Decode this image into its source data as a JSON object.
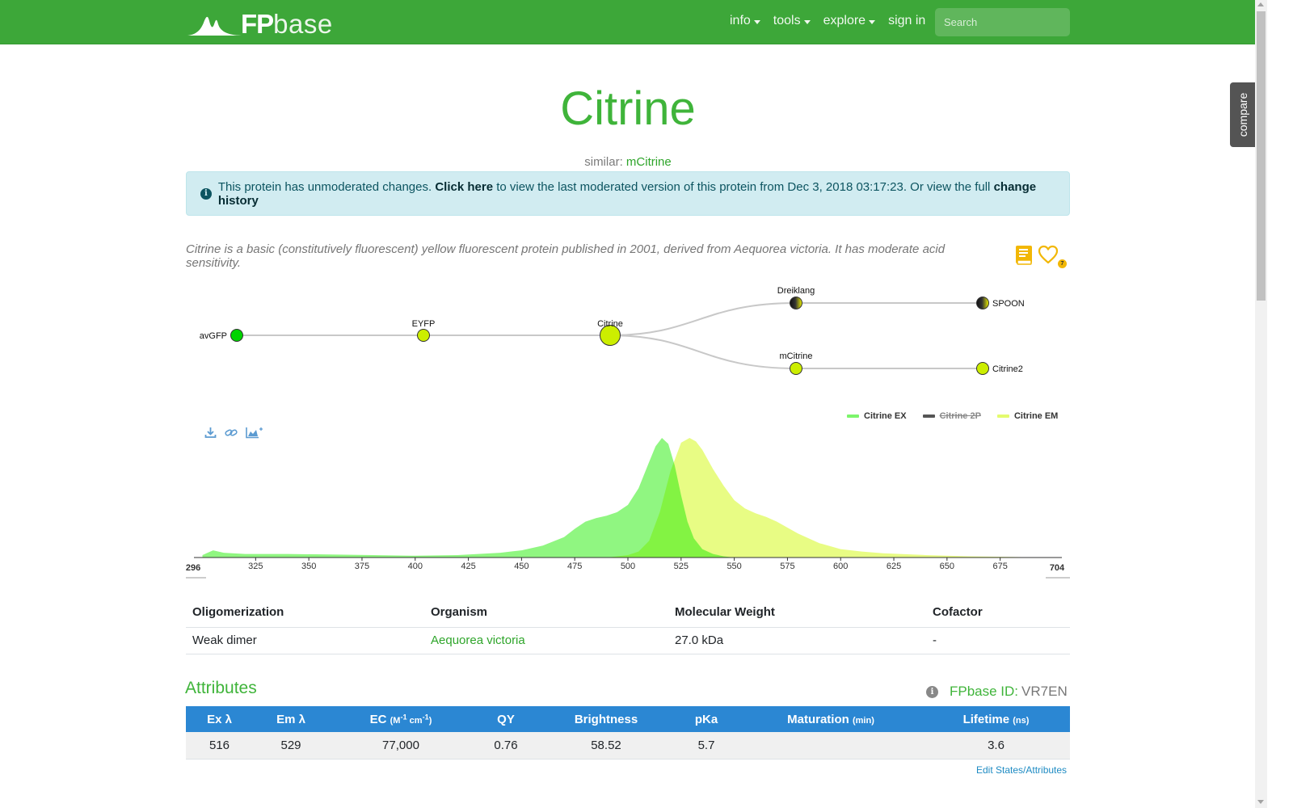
{
  "navbar": {
    "logo_fp": "FP",
    "logo_base": "base",
    "menu": [
      {
        "label": "info",
        "dropdown": true
      },
      {
        "label": "tools",
        "dropdown": true
      },
      {
        "label": "explore",
        "dropdown": true
      },
      {
        "label": "sign in",
        "dropdown": false
      }
    ],
    "search_placeholder": "Search",
    "color": "#3da739"
  },
  "compare_tab": "compare",
  "protein": {
    "name": "Citrine",
    "similar_label": "similar:",
    "similar_link": "mCitrine",
    "description": "Citrine is a basic (constitutively fluorescent) yellow fluorescent protein published in 2001, derived from Aequorea victoria. It has moderate acid sensitivity.",
    "favorite_count": "7"
  },
  "alert": {
    "text1": "This protein has unmoderated changes.",
    "link1": "Click here",
    "text2": "to view the last moderated version of this protein from Dec 3, 2018 03:17:23. Or view the full",
    "link2": "change history"
  },
  "lineage": {
    "nodes": [
      {
        "name": "avGFP",
        "color": "#00d400",
        "current": false
      },
      {
        "name": "EYFP",
        "color": "#ccee00",
        "current": false
      },
      {
        "name": "Citrine",
        "color": "#ccee00",
        "current": true
      },
      {
        "name": "Dreiklang",
        "color": "gradient-dark",
        "current": false
      },
      {
        "name": "SPOON",
        "color": "gradient-dark",
        "current": false
      },
      {
        "name": "mCitrine",
        "color": "#ccee00",
        "current": false
      },
      {
        "name": "Citrine2",
        "color": "#ccee00",
        "current": false
      }
    ]
  },
  "spectra": {
    "legend": [
      {
        "label": "Citrine EX",
        "color": "#7cf56b",
        "hidden": false
      },
      {
        "label": "Citrine 2P",
        "color": "#555555",
        "hidden": true
      },
      {
        "label": "Citrine EM",
        "color": "#e4fb6e",
        "hidden": false
      }
    ],
    "tools": [
      "download-icon",
      "link-icon",
      "add-chart-icon"
    ]
  },
  "chart_data": {
    "type": "area",
    "x_range": [
      296,
      704
    ],
    "x_ticks": [
      325,
      350,
      375,
      400,
      425,
      450,
      475,
      500,
      525,
      550,
      575,
      600,
      625,
      650,
      675
    ],
    "x_min_label": "296",
    "x_max_label": "704",
    "series": [
      {
        "name": "Citrine EX",
        "color": "#7cf56b",
        "x": [
          300,
          305,
          310,
          320,
          340,
          360,
          380,
          400,
          420,
          440,
          450,
          460,
          470,
          475,
          480,
          485,
          490,
          495,
          500,
          505,
          510,
          513,
          516,
          519,
          522,
          525,
          528,
          531,
          535,
          540,
          545,
          550
        ],
        "y": [
          0.02,
          0.06,
          0.04,
          0.03,
          0.03,
          0.025,
          0.02,
          0.015,
          0.02,
          0.04,
          0.06,
          0.1,
          0.17,
          0.24,
          0.3,
          0.33,
          0.35,
          0.38,
          0.44,
          0.58,
          0.8,
          0.93,
          1.0,
          0.95,
          0.77,
          0.52,
          0.3,
          0.16,
          0.07,
          0.03,
          0.01,
          0
        ]
      },
      {
        "name": "Citrine EM",
        "color": "#e4fb6e",
        "x": [
          490,
          500,
          505,
          510,
          515,
          520,
          525,
          529,
          532,
          535,
          540,
          545,
          550,
          555,
          560,
          565,
          570,
          575,
          580,
          590,
          600,
          610,
          620,
          640,
          660,
          680,
          700
        ],
        "y": [
          0,
          0.02,
          0.05,
          0.14,
          0.38,
          0.72,
          0.96,
          1.0,
          0.97,
          0.9,
          0.74,
          0.6,
          0.48,
          0.41,
          0.37,
          0.34,
          0.3,
          0.25,
          0.2,
          0.12,
          0.07,
          0.05,
          0.035,
          0.02,
          0.01,
          0.005,
          0
        ]
      }
    ]
  },
  "info_table": {
    "headers": [
      "Oligomerization",
      "Organism",
      "Molecular Weight",
      "Cofactor"
    ],
    "row": [
      "Weak dimer",
      "Aequorea victoria",
      "27.0 kDa",
      "-"
    ]
  },
  "attributes": {
    "heading": "Attributes",
    "fpbase_id_label": "FPbase ID:",
    "fpbase_id": "VR7EN",
    "headers": [
      {
        "label": "Ex λ",
        "unit": ""
      },
      {
        "label": "Em λ",
        "unit": ""
      },
      {
        "label": "EC",
        "unit": "(M-1 cm-1)"
      },
      {
        "label": "QY",
        "unit": ""
      },
      {
        "label": "Brightness",
        "unit": ""
      },
      {
        "label": "pKa",
        "unit": ""
      },
      {
        "label": "Maturation",
        "unit": "(min)"
      },
      {
        "label": "Lifetime",
        "unit": "(ns)"
      }
    ],
    "values": [
      "516",
      "529",
      "77,000",
      "0.76",
      "58.52",
      "5.7",
      "",
      "3.6"
    ],
    "edit_link": "Edit States/Attributes",
    "header_color": "#2b87d3"
  }
}
